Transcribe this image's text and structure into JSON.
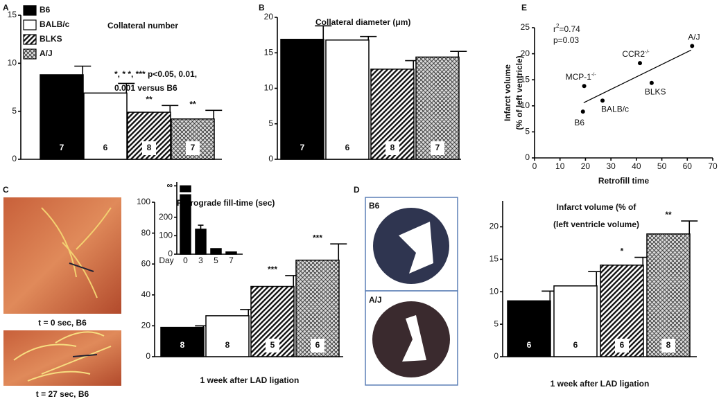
{
  "chart_data": [
    {
      "panel": "A",
      "type": "bar",
      "title": "Collateral number",
      "categories": [
        "B6",
        "BALB/c",
        "BLKS",
        "A/J"
      ],
      "values": [
        8.8,
        6.9,
        4.9,
        4.2
      ],
      "errors": [
        0.9,
        1.0,
        0.7,
        0.9
      ],
      "n_labels": [
        "7",
        "6",
        "8",
        "7"
      ],
      "significance": [
        null,
        null,
        "**",
        "**"
      ],
      "fills": [
        "black",
        "white",
        "hatch",
        "dots"
      ],
      "ylim": [
        0,
        15
      ],
      "yticks": [
        0,
        5,
        10,
        15
      ],
      "legend": "top-left",
      "annotation": [
        "*, * *, ***   p<0.05, 0.01,",
        "0.001 versus B6"
      ]
    },
    {
      "panel": "B",
      "type": "bar",
      "title": "Collateral diameter (μm)",
      "categories": [
        "B6",
        "BALB/c",
        "BLKS",
        "A/J"
      ],
      "values": [
        16.9,
        16.8,
        12.7,
        14.4
      ],
      "errors": [
        1.9,
        0.5,
        1.2,
        0.8
      ],
      "n_labels": [
        "7",
        "6",
        "8",
        "7"
      ],
      "fills": [
        "black",
        "white",
        "hatch",
        "dots"
      ],
      "ylim": [
        0,
        20
      ],
      "yticks": [
        0,
        5,
        10,
        15,
        20
      ]
    },
    {
      "panel": "C",
      "type": "bar",
      "title": "Retrograde fill-time (sec)",
      "x_label": "1 week after LAD ligation",
      "categories": [
        "B6",
        "BALB/c",
        "BLKS",
        "A/J"
      ],
      "values": [
        19,
        26.5,
        45.5,
        62.5
      ],
      "errors": [
        1,
        4,
        7,
        10.5
      ],
      "n_labels": [
        "8",
        "8",
        "5",
        "6"
      ],
      "significance": [
        null,
        null,
        "***",
        "***"
      ],
      "fills": [
        "black",
        "white",
        "hatch",
        "dots"
      ],
      "ylim": [
        0,
        100
      ],
      "yticks": [
        0,
        20,
        40,
        60,
        80,
        100
      ]
    },
    {
      "type": "bar",
      "x_label": "Day",
      "categories": [
        "0",
        "3",
        "5",
        "7"
      ],
      "values": [
        370,
        135,
        30,
        12
      ],
      "errors": [
        null,
        22,
        null,
        null
      ],
      "fills": [
        "black",
        "black",
        "black",
        "black"
      ],
      "ylim": [
        0,
        390
      ],
      "yticks": [
        0,
        100,
        200,
        {
          "value": 370,
          "label": "∞"
        }
      ]
    },
    {
      "panel": "D",
      "type": "bar",
      "title": [
        "Infarct volume (% of",
        "(left ventricle volume)"
      ],
      "x_label": "1 week after LAD ligation",
      "categories": [
        "B6",
        "BALB/c",
        "BLKS",
        "A/J"
      ],
      "values": [
        8.6,
        10.9,
        14.1,
        18.9
      ],
      "errors": [
        1.5,
        2.2,
        1.2,
        2.0
      ],
      "n_labels": [
        "6",
        "6",
        "6",
        "8"
      ],
      "significance": [
        null,
        null,
        "*",
        "**"
      ],
      "fills": [
        "black",
        "white",
        "hatch",
        "dots"
      ],
      "ylim": [
        0,
        24
      ],
      "yticks": [
        0,
        5,
        10,
        15,
        20
      ]
    },
    {
      "panel": "E",
      "type": "scatter",
      "x_label": "Retrofill time",
      "y_label": [
        "Infarct volume",
        "(% of left ventricle)"
      ],
      "x": [
        19,
        26.7,
        19.5,
        41.4,
        46,
        61.9
      ],
      "values": [
        8.9,
        11.0,
        13.8,
        18.2,
        14.4,
        21.5
      ],
      "point_labels": [
        {
          "text": "B6"
        },
        {
          "text": "BALB/c"
        },
        {
          "text": "MCP-1",
          "sup": "-/-"
        },
        {
          "text": "CCR2",
          "sup": "-/-"
        },
        {
          "text": "BLKS"
        },
        {
          "text": "A/J"
        }
      ],
      "fit": {
        "x": [
          19.3,
          61.5
        ],
        "y": [
          10.6,
          20.7
        ]
      },
      "r2": {
        "text": "r",
        "sup": "2",
        "rest": "=0.74"
      },
      "p_value": "p=0.03",
      "xlim": [
        0,
        70
      ],
      "xticks": [
        0,
        10,
        20,
        30,
        40,
        50,
        60,
        70
      ],
      "ylim": [
        0,
        25
      ],
      "yticks": [
        0,
        5,
        10,
        15,
        20,
        25
      ]
    }
  ],
  "images": {
    "C": [
      "t = 0 sec, B6",
      "t = 27 sec, B6"
    ],
    "D": [
      "B6",
      "A/J"
    ]
  }
}
